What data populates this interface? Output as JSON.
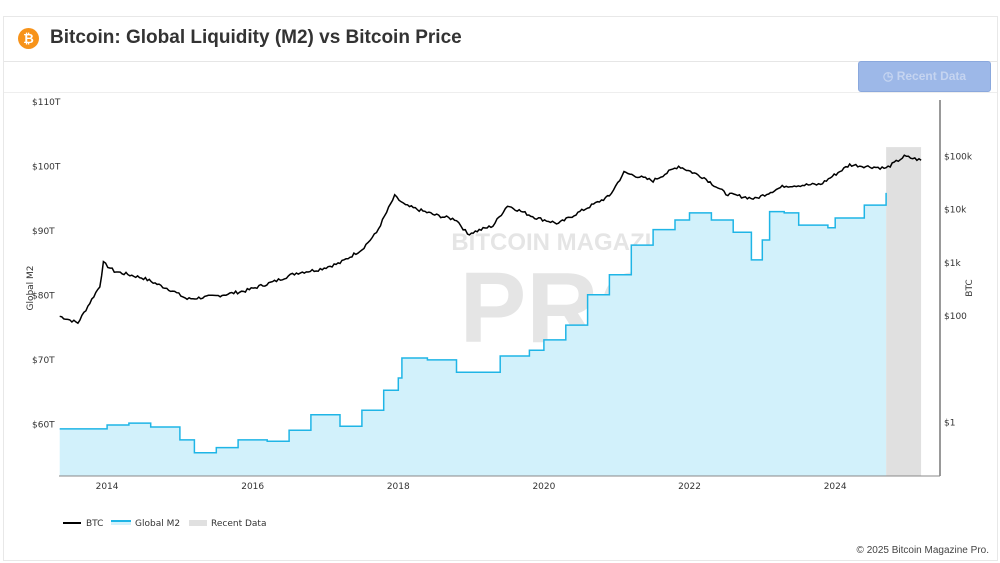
{
  "header": {
    "title": "Bitcoin: Global Liquidity (M2) vs Bitcoin Price",
    "logo_icon": "bitcoin-icon"
  },
  "toolbar": {
    "recent_label": "Recent Data",
    "recent_icon": "clock-icon"
  },
  "footer": {
    "copyright": "© 2025 Bitcoin Magazine Pro."
  },
  "watermark": {
    "line1": "BITCOIN MAGAZINE",
    "line2": "PRO"
  },
  "chart_data": {
    "type": "line",
    "title": "Bitcoin: Global Liquidity (M2) vs Bitcoin Price",
    "x_ticks": [
      "2014",
      "2016",
      "2018",
      "2020",
      "2022",
      "2024"
    ],
    "xlim": [
      2013.34,
      2025.44
    ],
    "y_left": {
      "label": "Global M2",
      "ticks": [
        "$60T",
        "$70T",
        "$80T",
        "$90T",
        "$100T",
        "$110T"
      ],
      "tick_values": [
        60,
        70,
        80,
        90,
        100,
        110
      ],
      "range": [
        52,
        110.3
      ],
      "unit": "trillion USD"
    },
    "y_right": {
      "label": "BTC",
      "scale": "log",
      "ticks": [
        "$1",
        "$100",
        "$1k",
        "$10k",
        "$100k"
      ],
      "tick_values": [
        1,
        100,
        1000,
        10000,
        100000
      ],
      "range": [
        0.1,
        1150000
      ]
    },
    "legend": {
      "position": "bottom-left",
      "entries": [
        "BTC",
        "Global M2",
        "Recent Data"
      ]
    },
    "colors": {
      "btc": "#000000",
      "m2_line": "#1fb5e6",
      "m2_fill": "#d2f1fb",
      "recent": "#e0e0e0"
    },
    "recent_data_range": [
      2024.7,
      2025.18
    ],
    "series": [
      {
        "name": "BTC",
        "axis": "right",
        "points": [
          [
            2013.35,
            100
          ],
          [
            2013.6,
            75
          ],
          [
            2013.9,
            370
          ],
          [
            2013.95,
            1000
          ],
          [
            2014.1,
            700
          ],
          [
            2014.5,
            520
          ],
          [
            2014.9,
            300
          ],
          [
            2015.1,
            210
          ],
          [
            2015.5,
            240
          ],
          [
            2015.9,
            300
          ],
          [
            2016.3,
            450
          ],
          [
            2016.6,
            650
          ],
          [
            2016.9,
            750
          ],
          [
            2017.2,
            1000
          ],
          [
            2017.5,
            1800
          ],
          [
            2017.7,
            3700
          ],
          [
            2017.95,
            18000
          ],
          [
            2018.1,
            12000
          ],
          [
            2018.5,
            8000
          ],
          [
            2018.8,
            6500
          ],
          [
            2018.95,
            3500
          ],
          [
            2019.3,
            5000
          ],
          [
            2019.5,
            12000
          ],
          [
            2019.9,
            7000
          ],
          [
            2020.2,
            5500
          ],
          [
            2020.6,
            11000
          ],
          [
            2020.9,
            18000
          ],
          [
            2021.1,
            50000
          ],
          [
            2021.5,
            35000
          ],
          [
            2021.85,
            66000
          ],
          [
            2022.2,
            40000
          ],
          [
            2022.5,
            20000
          ],
          [
            2022.9,
            16000
          ],
          [
            2023.3,
            28000
          ],
          [
            2023.8,
            30000
          ],
          [
            2024.2,
            70000
          ],
          [
            2024.7,
            60000
          ],
          [
            2024.95,
            100000
          ],
          [
            2025.18,
            85000
          ]
        ]
      },
      {
        "name": "Global M2",
        "axis": "left",
        "points": [
          [
            2013.35,
            59.3
          ],
          [
            2014.0,
            59.9
          ],
          [
            2014.3,
            60.2
          ],
          [
            2014.6,
            59.6
          ],
          [
            2015.0,
            57.6
          ],
          [
            2015.2,
            55.6
          ],
          [
            2015.5,
            56.4
          ],
          [
            2015.8,
            57.6
          ],
          [
            2016.2,
            57.4
          ],
          [
            2016.5,
            59.1
          ],
          [
            2016.8,
            61.5
          ],
          [
            2017.2,
            59.7
          ],
          [
            2017.5,
            62.2
          ],
          [
            2017.8,
            65.3
          ],
          [
            2018.0,
            67.2
          ],
          [
            2018.05,
            70.3
          ],
          [
            2018.4,
            70.0
          ],
          [
            2018.8,
            68.1
          ],
          [
            2019.0,
            68.1
          ],
          [
            2019.4,
            70.6
          ],
          [
            2019.8,
            71.5
          ],
          [
            2020.0,
            73.1
          ],
          [
            2020.3,
            75.4
          ],
          [
            2020.6,
            80.1
          ],
          [
            2020.9,
            83.2
          ],
          [
            2021.2,
            87.8
          ],
          [
            2021.5,
            90.2
          ],
          [
            2021.8,
            91.7
          ],
          [
            2022.0,
            92.8
          ],
          [
            2022.3,
            91.7
          ],
          [
            2022.6,
            89.8
          ],
          [
            2022.85,
            85.5
          ],
          [
            2023.0,
            88.6
          ],
          [
            2023.1,
            93.0
          ],
          [
            2023.3,
            92.8
          ],
          [
            2023.5,
            90.9
          ],
          [
            2023.9,
            90.5
          ],
          [
            2024.0,
            92.0
          ],
          [
            2024.4,
            94.0
          ],
          [
            2024.7,
            95.9
          ]
        ]
      }
    ]
  }
}
